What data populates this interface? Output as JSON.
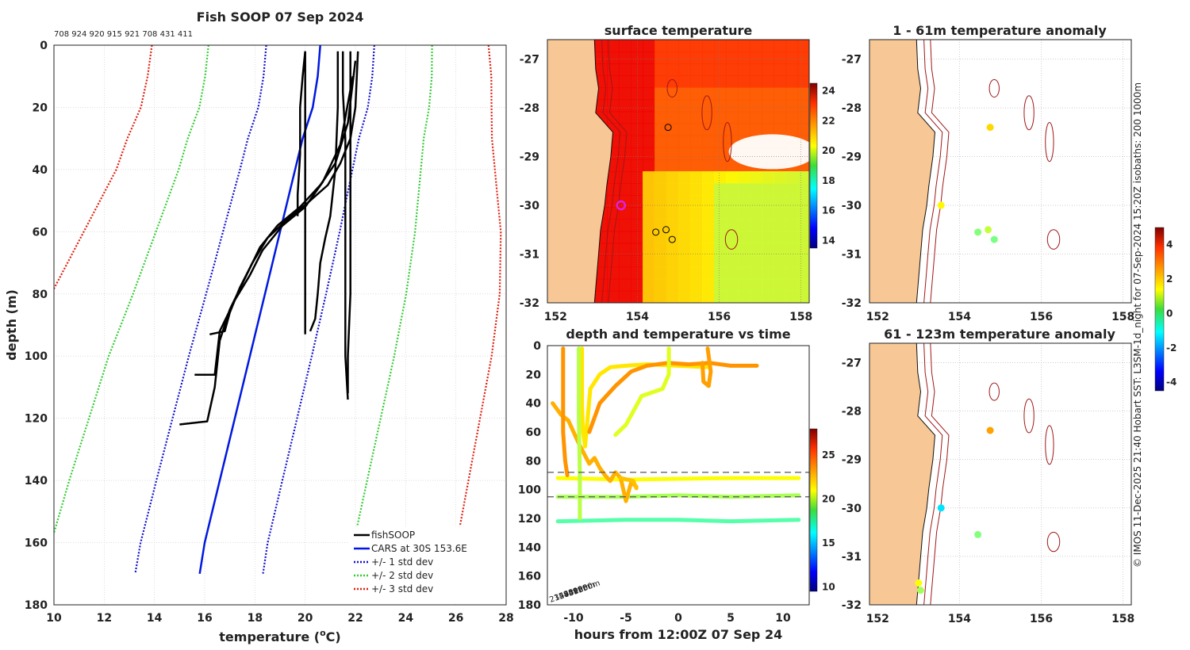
{
  "figure": {
    "credit_line": "© IMOS 11-Dec-2025 21:40 Hobart SST: L3SM-1d_night for 07-Sep-2024 15:20Z isobaths: 200  1000m"
  },
  "colors": {
    "land": "#f7c896",
    "grid": "#c8c8c8",
    "fishsoop": "#000000",
    "cars": "#0018e0",
    "std1": "#1010d0",
    "std2": "#33cc33",
    "std3": "#e02010",
    "isobath": "#a01818",
    "marker_ring": "#e020e0"
  },
  "chart_data": [
    {
      "id": "profile",
      "type": "line",
      "title": "Fish SOOP 07 Sep 2024",
      "subtitle": "708 924 920 915 921 708 431 411",
      "xlabel": "temperature (",
      "xlabel_unit": "o",
      "xlabel_end": "C)",
      "ylabel": "depth (m)",
      "xlim": [
        10,
        28
      ],
      "ylim": [
        180,
        0
      ],
      "xticks": [
        "10",
        "12",
        "14",
        "16",
        "18",
        "20",
        "22",
        "24",
        "26",
        "28"
      ],
      "yticks": [
        "0",
        "20",
        "40",
        "60",
        "80",
        "100",
        "120",
        "140",
        "160",
        "180"
      ],
      "legend": [
        "fishSOOP",
        "CARS at 30S 153.6E",
        "+/- 1 std dev",
        "+/- 2 std dev",
        "+/- 3 std dev"
      ],
      "legend_position": "bottom-right",
      "cars": [
        [
          20.6,
          0
        ],
        [
          20.5,
          10
        ],
        [
          20.3,
          20
        ],
        [
          19.9,
          30
        ],
        [
          19.6,
          40
        ],
        [
          19.3,
          50
        ],
        [
          19.0,
          60
        ],
        [
          18.7,
          70
        ],
        [
          18.4,
          80
        ],
        [
          18.1,
          90
        ],
        [
          17.8,
          100
        ],
        [
          17.5,
          110
        ],
        [
          17.2,
          120
        ],
        [
          16.9,
          130
        ],
        [
          16.6,
          140
        ],
        [
          16.3,
          150
        ],
        [
          16.0,
          160
        ],
        [
          15.8,
          170
        ]
      ],
      "std_offsets": [
        2.15,
        4.45,
        6.7
      ],
      "std_left_shape": [
        [
          0,
          0
        ],
        [
          20,
          0.05
        ],
        [
          40,
          0.15
        ],
        [
          60,
          0.4
        ],
        [
          80,
          0.65
        ],
        [
          100,
          0.95
        ],
        [
          120,
          1.1
        ],
        [
          140,
          1.25
        ],
        [
          160,
          1.35
        ],
        [
          170,
          1.4
        ]
      ],
      "std_right_shape": [
        [
          0,
          0
        ],
        [
          20,
          0.15
        ],
        [
          40,
          0.45
        ],
        [
          60,
          0.75
        ],
        [
          80,
          0.95
        ],
        [
          100,
          1.05
        ],
        [
          120,
          1.1
        ],
        [
          140,
          1.15
        ],
        [
          160,
          1.2
        ],
        [
          170,
          1.25
        ]
      ],
      "casts": [
        [
          [
            20.0,
            2
          ],
          [
            19.9,
            10
          ],
          [
            19.8,
            20
          ],
          [
            19.8,
            35
          ],
          [
            19.7,
            48
          ],
          [
            19.7,
            55
          ]
        ],
        [
          [
            20.0,
            2
          ],
          [
            20.0,
            25
          ],
          [
            20.0,
            50
          ],
          [
            20.0,
            70
          ],
          [
            20.0,
            93
          ]
        ],
        [
          [
            21.3,
            2
          ],
          [
            21.3,
            20
          ],
          [
            21.2,
            40
          ],
          [
            21.0,
            55
          ],
          [
            20.8,
            62
          ],
          [
            20.6,
            70
          ],
          [
            20.5,
            80
          ],
          [
            20.4,
            88
          ],
          [
            20.2,
            92
          ]
        ],
        [
          [
            21.5,
            2
          ],
          [
            21.5,
            15
          ],
          [
            21.6,
            30
          ],
          [
            21.6,
            60
          ],
          [
            21.6,
            85
          ],
          [
            21.6,
            100
          ],
          [
            21.7,
            114
          ]
        ],
        [
          [
            21.8,
            2
          ],
          [
            21.8,
            20
          ],
          [
            21.8,
            40
          ],
          [
            21.8,
            60
          ],
          [
            21.8,
            80
          ],
          [
            21.7,
            100
          ],
          [
            21.7,
            112
          ]
        ],
        [
          [
            22.1,
            2
          ],
          [
            22.0,
            20
          ],
          [
            21.8,
            30
          ],
          [
            21.4,
            38
          ],
          [
            20.9,
            45
          ],
          [
            20.2,
            50
          ],
          [
            19.3,
            56
          ],
          [
            18.5,
            62
          ],
          [
            17.9,
            70
          ],
          [
            17.4,
            78
          ],
          [
            17.0,
            86
          ],
          [
            16.8,
            92
          ],
          [
            16.2,
            93
          ]
        ],
        [
          [
            22.0,
            5
          ],
          [
            21.7,
            25
          ],
          [
            21.2,
            38
          ],
          [
            20.6,
            45
          ],
          [
            19.8,
            52
          ],
          [
            18.9,
            58
          ],
          [
            18.2,
            65
          ],
          [
            17.6,
            75
          ],
          [
            17.0,
            85
          ],
          [
            16.6,
            95
          ],
          [
            16.4,
            110
          ],
          [
            16.1,
            121
          ],
          [
            15.0,
            122
          ]
        ],
        [
          [
            21.9,
            10
          ],
          [
            21.4,
            32
          ],
          [
            20.7,
            44
          ],
          [
            20.0,
            52
          ],
          [
            19.1,
            58
          ],
          [
            18.3,
            66
          ],
          [
            17.8,
            74
          ],
          [
            17.2,
            82
          ],
          [
            16.6,
            92
          ],
          [
            16.4,
            106
          ],
          [
            15.6,
            106
          ]
        ]
      ]
    },
    {
      "id": "sst-map",
      "type": "heatmap",
      "title": "surface temperature",
      "xlim": [
        151.8,
        158.2
      ],
      "ylim": [
        -32,
        -26.6
      ],
      "xticks": [
        "152",
        "154",
        "156",
        "158"
      ],
      "yticks": [
        "-27",
        "-28",
        "-29",
        "-30",
        "-31",
        "-32"
      ],
      "colorbar_ticks": [
        "14",
        "16",
        "18",
        "20",
        "22",
        "24"
      ],
      "colorbar_range": [
        13.5,
        24.5
      ],
      "coast": [
        [
          152.95,
          -26.6
        ],
        [
          152.98,
          -27.2
        ],
        [
          153.05,
          -27.6
        ],
        [
          152.98,
          -28.1
        ],
        [
          153.4,
          -28.5
        ],
        [
          153.35,
          -29.0
        ],
        [
          153.25,
          -29.6
        ],
        [
          153.2,
          -30.0
        ],
        [
          153.1,
          -30.5
        ],
        [
          153.05,
          -31.0
        ],
        [
          153.0,
          -31.5
        ],
        [
          152.95,
          -32.0
        ]
      ],
      "stations": [
        [
          154.75,
          -28.4
        ],
        [
          154.45,
          -30.55
        ],
        [
          154.7,
          -30.5
        ],
        [
          154.85,
          -30.7
        ]
      ],
      "highlight_station": [
        153.6,
        -30.0
      ]
    },
    {
      "id": "time-series",
      "type": "scatter",
      "title": "depth and temperature vs time",
      "xlabel": "hours from 12:00Z 07 Sep 24",
      "xlim": [
        -12.5,
        12.5
      ],
      "ylim": [
        180,
        0
      ],
      "xticks": [
        "-10",
        "-5",
        "0",
        "5",
        "10"
      ],
      "yticks": [
        "0",
        "20",
        "40",
        "60",
        "80",
        "100",
        "120",
        "140",
        "160",
        "180"
      ],
      "colorbar_ticks": [
        "10",
        "15",
        "20",
        "25"
      ],
      "colorbar_range": [
        9.5,
        28
      ],
      "reference_depths": [
        88,
        105
      ],
      "labels_bottom_left": [
        "2348m",
        "1598m",
        "2740m",
        "4520m",
        "4120m",
        "9550m"
      ],
      "tracks": [
        {
          "temp": 21.0,
          "pts": [
            [
              -11.5,
              92
            ],
            [
              -5,
              93
            ],
            [
              5,
              92
            ],
            [
              11.5,
              92
            ]
          ]
        },
        {
          "temp": 19.5,
          "pts": [
            [
              -11.5,
              105
            ],
            [
              -5,
              105
            ],
            [
              0,
              104
            ],
            [
              5,
              105
            ],
            [
              11.5,
              104
            ]
          ]
        },
        {
          "temp": 18.0,
          "pts": [
            [
              -11.5,
              122
            ],
            [
              -5,
              121
            ],
            [
              0,
              121
            ],
            [
              5,
              122
            ],
            [
              11.5,
              121
            ]
          ]
        },
        {
          "temp": 22.5,
          "pts": [
            [
              -12,
              40
            ],
            [
              -11.2,
              48
            ],
            [
              -10.5,
              52
            ],
            [
              -10,
              60
            ],
            [
              -9.5,
              68
            ],
            [
              -9,
              75
            ],
            [
              -8.5,
              82
            ],
            [
              -8,
              78
            ],
            [
              -7.5,
              85
            ],
            [
              -7,
              90
            ],
            [
              -6.5,
              94
            ],
            [
              -6,
              88
            ],
            [
              -5.5,
              92
            ],
            [
              -5,
              108
            ],
            [
              -4.5,
              95
            ],
            [
              -4,
              98
            ]
          ]
        },
        {
          "temp": 21.5,
          "pts": [
            [
              -9.2,
              2
            ],
            [
              -9.2,
              40
            ],
            [
              -9.1,
              60
            ],
            [
              -8.9,
              70
            ],
            [
              -8.4,
              30
            ],
            [
              -7.5,
              20
            ],
            [
              -6.5,
              15
            ],
            [
              -5,
              14
            ],
            [
              -3,
              13
            ],
            [
              0,
              14
            ],
            [
              3,
              15
            ]
          ]
        },
        {
          "temp": 23.0,
          "pts": [
            [
              -8.5,
              60
            ],
            [
              -7.5,
              40
            ],
            [
              -6,
              28
            ],
            [
              -4.5,
              18
            ],
            [
              -3,
              14
            ],
            [
              -1,
              12
            ],
            [
              1,
              13
            ],
            [
              3,
              12
            ],
            [
              5,
              14
            ],
            [
              7.5,
              14
            ]
          ]
        },
        {
          "temp": 23.0,
          "pts": [
            [
              -11,
              2
            ],
            [
              -11,
              60
            ],
            [
              -10.8,
              80
            ],
            [
              -10.6,
              90
            ]
          ]
        },
        {
          "temp": 19.8,
          "pts": [
            [
              -9.5,
              2
            ],
            [
              -9.5,
              50
            ],
            [
              -9.4,
              90
            ],
            [
              -9.4,
              120
            ]
          ]
        },
        {
          "temp": 20.5,
          "pts": [
            [
              -0.9,
              2
            ],
            [
              -0.9,
              20
            ],
            [
              -1.5,
              30
            ],
            [
              -3.5,
              35
            ],
            [
              -5,
              55
            ],
            [
              -6,
              62
            ]
          ]
        },
        {
          "temp": 22.8,
          "pts": [
            [
              2.3,
              12
            ],
            [
              2.4,
              25
            ],
            [
              2.9,
              28
            ],
            [
              3.1,
              18
            ],
            [
              2.8,
              2
            ]
          ]
        },
        {
          "temp": 22.2,
          "pts": [
            [
              -5.5,
              92
            ],
            [
              -4.3,
              94
            ],
            [
              -4.0,
              99
            ]
          ]
        }
      ]
    },
    {
      "id": "anomaly-upper",
      "type": "scatter",
      "title": "1 - 61m temperature anomaly",
      "xlim": [
        151.8,
        158.2
      ],
      "ylim": [
        -32,
        -26.6
      ],
      "xticks": [
        "152",
        "154",
        "156",
        "158"
      ],
      "yticks": [
        "-27",
        "-28",
        "-29",
        "-30",
        "-31",
        "-32"
      ],
      "colorbar_ticks": [
        "4",
        "2",
        "0",
        "-2",
        "-4"
      ],
      "colorbar_range": [
        -4.5,
        5
      ],
      "points": [
        {
          "lon": 154.75,
          "lat": -28.4,
          "anom": 1.8
        },
        {
          "lon": 153.55,
          "lat": -30.0,
          "anom": 1.5
        },
        {
          "lon": 154.45,
          "lat": -30.55,
          "anom": 0.3
        },
        {
          "lon": 154.7,
          "lat": -30.5,
          "anom": 0.9
        },
        {
          "lon": 154.85,
          "lat": -30.7,
          "anom": 0.2
        }
      ]
    },
    {
      "id": "anomaly-lower",
      "type": "scatter",
      "title": "61 - 123m temperature anomaly",
      "xlim": [
        151.8,
        158.2
      ],
      "ylim": [
        -32,
        -26.6
      ],
      "xticks": [
        "152",
        "154",
        "156",
        "158"
      ],
      "yticks": [
        "-27",
        "-28",
        "-29",
        "-30",
        "-31",
        "-32"
      ],
      "points": [
        {
          "lon": 154.75,
          "lat": -28.4,
          "anom": 2.3
        },
        {
          "lon": 153.55,
          "lat": -30.0,
          "anom": -1.2
        },
        {
          "lon": 154.45,
          "lat": -30.55,
          "anom": 0.3
        },
        {
          "lon": 153.0,
          "lat": -31.55,
          "anom": 1.4
        },
        {
          "lon": 153.05,
          "lat": -31.7,
          "anom": 0.6
        }
      ]
    }
  ]
}
